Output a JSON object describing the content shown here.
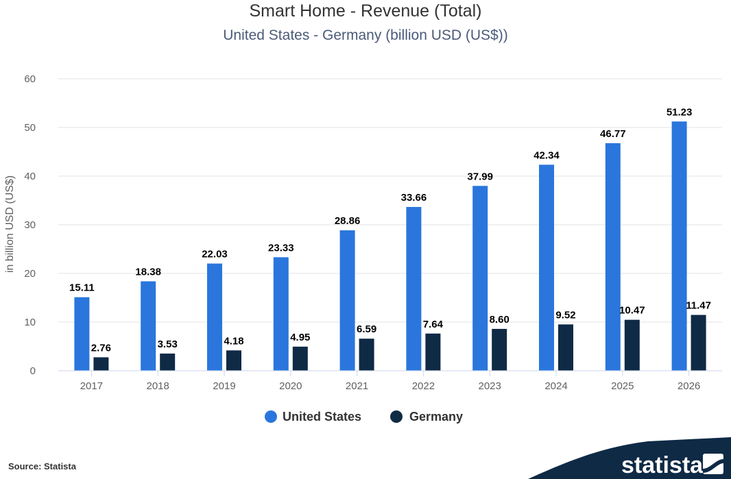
{
  "chart_data": {
    "type": "bar",
    "title": "Smart Home - Revenue (Total)",
    "subtitle": "United States - Germany (billion USD (US$))",
    "xlabel": "",
    "ylabel": "in billion USD (US$)",
    "ylim": [
      0,
      60
    ],
    "yticks": [
      "0",
      "10",
      "20",
      "30",
      "40",
      "50",
      "60"
    ],
    "grid": true,
    "legend_position": "bottom-center",
    "categories": [
      "2017",
      "2018",
      "2019",
      "2020",
      "2021",
      "2022",
      "2023",
      "2024",
      "2025",
      "2026"
    ],
    "series": [
      {
        "name": "United States",
        "color": "#2a76dd",
        "values": [
          15.11,
          18.38,
          22.03,
          23.33,
          28.86,
          33.66,
          37.99,
          42.34,
          46.77,
          51.23
        ],
        "labels": [
          "15.11",
          "18.38",
          "22.03",
          "23.33",
          "28.86",
          "33.66",
          "37.99",
          "42.34",
          "46.77",
          "51.23"
        ]
      },
      {
        "name": "Germany",
        "color": "#0f2a45",
        "values": [
          2.76,
          3.53,
          4.18,
          4.95,
          6.59,
          7.64,
          8.6,
          9.52,
          10.47,
          11.47
        ],
        "labels": [
          "2.76",
          "3.53",
          "4.18",
          "4.95",
          "6.59",
          "7.64",
          "8.60",
          "9.52",
          "10.47",
          "11.47"
        ]
      }
    ]
  },
  "footer": {
    "source": "Source: Statista",
    "brand": "statista",
    "brand_color": "#0f2a45"
  }
}
